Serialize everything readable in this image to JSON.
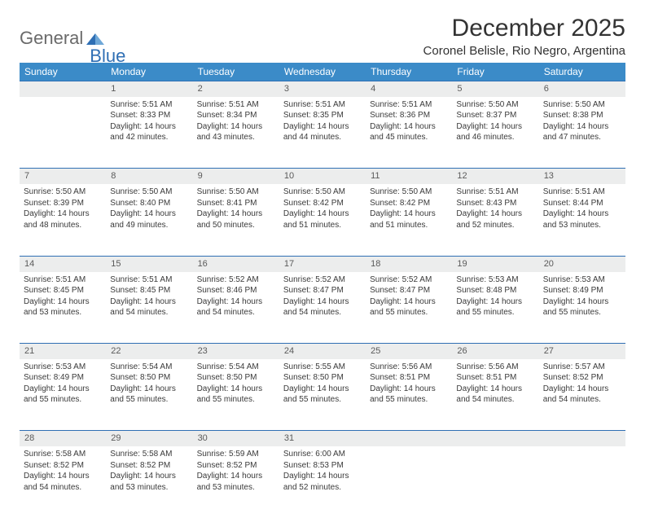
{
  "logo": {
    "word1": "General",
    "word2": "Blue"
  },
  "title": "December 2025",
  "location": "Coronel Belisle, Rio Negro, Argentina",
  "colors": {
    "header_bg": "#3b8bc8",
    "header_text": "#ffffff",
    "border": "#2f6fb4",
    "daynum_bg": "#eceded",
    "logo_gray": "#6a6a6a",
    "logo_blue": "#2f6fb4"
  },
  "fonts": {
    "title_size": 30,
    "location_size": 15,
    "th_size": 12,
    "daynum_size": 11,
    "cell_size": 10
  },
  "weekdays": [
    "Sunday",
    "Monday",
    "Tuesday",
    "Wednesday",
    "Thursday",
    "Friday",
    "Saturday"
  ],
  "weeks": [
    {
      "nums": [
        "",
        "1",
        "2",
        "3",
        "4",
        "5",
        "6"
      ],
      "cells": [
        {
          "empty": true
        },
        {
          "sunrise": "Sunrise: 5:51 AM",
          "sunset": "Sunset: 8:33 PM",
          "d1": "Daylight: 14 hours",
          "d2": "and 42 minutes."
        },
        {
          "sunrise": "Sunrise: 5:51 AM",
          "sunset": "Sunset: 8:34 PM",
          "d1": "Daylight: 14 hours",
          "d2": "and 43 minutes."
        },
        {
          "sunrise": "Sunrise: 5:51 AM",
          "sunset": "Sunset: 8:35 PM",
          "d1": "Daylight: 14 hours",
          "d2": "and 44 minutes."
        },
        {
          "sunrise": "Sunrise: 5:51 AM",
          "sunset": "Sunset: 8:36 PM",
          "d1": "Daylight: 14 hours",
          "d2": "and 45 minutes."
        },
        {
          "sunrise": "Sunrise: 5:50 AM",
          "sunset": "Sunset: 8:37 PM",
          "d1": "Daylight: 14 hours",
          "d2": "and 46 minutes."
        },
        {
          "sunrise": "Sunrise: 5:50 AM",
          "sunset": "Sunset: 8:38 PM",
          "d1": "Daylight: 14 hours",
          "d2": "and 47 minutes."
        }
      ]
    },
    {
      "nums": [
        "7",
        "8",
        "9",
        "10",
        "11",
        "12",
        "13"
      ],
      "cells": [
        {
          "sunrise": "Sunrise: 5:50 AM",
          "sunset": "Sunset: 8:39 PM",
          "d1": "Daylight: 14 hours",
          "d2": "and 48 minutes."
        },
        {
          "sunrise": "Sunrise: 5:50 AM",
          "sunset": "Sunset: 8:40 PM",
          "d1": "Daylight: 14 hours",
          "d2": "and 49 minutes."
        },
        {
          "sunrise": "Sunrise: 5:50 AM",
          "sunset": "Sunset: 8:41 PM",
          "d1": "Daylight: 14 hours",
          "d2": "and 50 minutes."
        },
        {
          "sunrise": "Sunrise: 5:50 AM",
          "sunset": "Sunset: 8:42 PM",
          "d1": "Daylight: 14 hours",
          "d2": "and 51 minutes."
        },
        {
          "sunrise": "Sunrise: 5:50 AM",
          "sunset": "Sunset: 8:42 PM",
          "d1": "Daylight: 14 hours",
          "d2": "and 51 minutes."
        },
        {
          "sunrise": "Sunrise: 5:51 AM",
          "sunset": "Sunset: 8:43 PM",
          "d1": "Daylight: 14 hours",
          "d2": "and 52 minutes."
        },
        {
          "sunrise": "Sunrise: 5:51 AM",
          "sunset": "Sunset: 8:44 PM",
          "d1": "Daylight: 14 hours",
          "d2": "and 53 minutes."
        }
      ]
    },
    {
      "nums": [
        "14",
        "15",
        "16",
        "17",
        "18",
        "19",
        "20"
      ],
      "cells": [
        {
          "sunrise": "Sunrise: 5:51 AM",
          "sunset": "Sunset: 8:45 PM",
          "d1": "Daylight: 14 hours",
          "d2": "and 53 minutes."
        },
        {
          "sunrise": "Sunrise: 5:51 AM",
          "sunset": "Sunset: 8:45 PM",
          "d1": "Daylight: 14 hours",
          "d2": "and 54 minutes."
        },
        {
          "sunrise": "Sunrise: 5:52 AM",
          "sunset": "Sunset: 8:46 PM",
          "d1": "Daylight: 14 hours",
          "d2": "and 54 minutes."
        },
        {
          "sunrise": "Sunrise: 5:52 AM",
          "sunset": "Sunset: 8:47 PM",
          "d1": "Daylight: 14 hours",
          "d2": "and 54 minutes."
        },
        {
          "sunrise": "Sunrise: 5:52 AM",
          "sunset": "Sunset: 8:47 PM",
          "d1": "Daylight: 14 hours",
          "d2": "and 55 minutes."
        },
        {
          "sunrise": "Sunrise: 5:53 AM",
          "sunset": "Sunset: 8:48 PM",
          "d1": "Daylight: 14 hours",
          "d2": "and 55 minutes."
        },
        {
          "sunrise": "Sunrise: 5:53 AM",
          "sunset": "Sunset: 8:49 PM",
          "d1": "Daylight: 14 hours",
          "d2": "and 55 minutes."
        }
      ]
    },
    {
      "nums": [
        "21",
        "22",
        "23",
        "24",
        "25",
        "26",
        "27"
      ],
      "cells": [
        {
          "sunrise": "Sunrise: 5:53 AM",
          "sunset": "Sunset: 8:49 PM",
          "d1": "Daylight: 14 hours",
          "d2": "and 55 minutes."
        },
        {
          "sunrise": "Sunrise: 5:54 AM",
          "sunset": "Sunset: 8:50 PM",
          "d1": "Daylight: 14 hours",
          "d2": "and 55 minutes."
        },
        {
          "sunrise": "Sunrise: 5:54 AM",
          "sunset": "Sunset: 8:50 PM",
          "d1": "Daylight: 14 hours",
          "d2": "and 55 minutes."
        },
        {
          "sunrise": "Sunrise: 5:55 AM",
          "sunset": "Sunset: 8:50 PM",
          "d1": "Daylight: 14 hours",
          "d2": "and 55 minutes."
        },
        {
          "sunrise": "Sunrise: 5:56 AM",
          "sunset": "Sunset: 8:51 PM",
          "d1": "Daylight: 14 hours",
          "d2": "and 55 minutes."
        },
        {
          "sunrise": "Sunrise: 5:56 AM",
          "sunset": "Sunset: 8:51 PM",
          "d1": "Daylight: 14 hours",
          "d2": "and 54 minutes."
        },
        {
          "sunrise": "Sunrise: 5:57 AM",
          "sunset": "Sunset: 8:52 PM",
          "d1": "Daylight: 14 hours",
          "d2": "and 54 minutes."
        }
      ]
    },
    {
      "nums": [
        "28",
        "29",
        "30",
        "31",
        "",
        "",
        ""
      ],
      "cells": [
        {
          "sunrise": "Sunrise: 5:58 AM",
          "sunset": "Sunset: 8:52 PM",
          "d1": "Daylight: 14 hours",
          "d2": "and 54 minutes."
        },
        {
          "sunrise": "Sunrise: 5:58 AM",
          "sunset": "Sunset: 8:52 PM",
          "d1": "Daylight: 14 hours",
          "d2": "and 53 minutes."
        },
        {
          "sunrise": "Sunrise: 5:59 AM",
          "sunset": "Sunset: 8:52 PM",
          "d1": "Daylight: 14 hours",
          "d2": "and 53 minutes."
        },
        {
          "sunrise": "Sunrise: 6:00 AM",
          "sunset": "Sunset: 8:53 PM",
          "d1": "Daylight: 14 hours",
          "d2": "and 52 minutes."
        },
        {
          "empty": true
        },
        {
          "empty": true
        },
        {
          "empty": true
        }
      ]
    }
  ]
}
